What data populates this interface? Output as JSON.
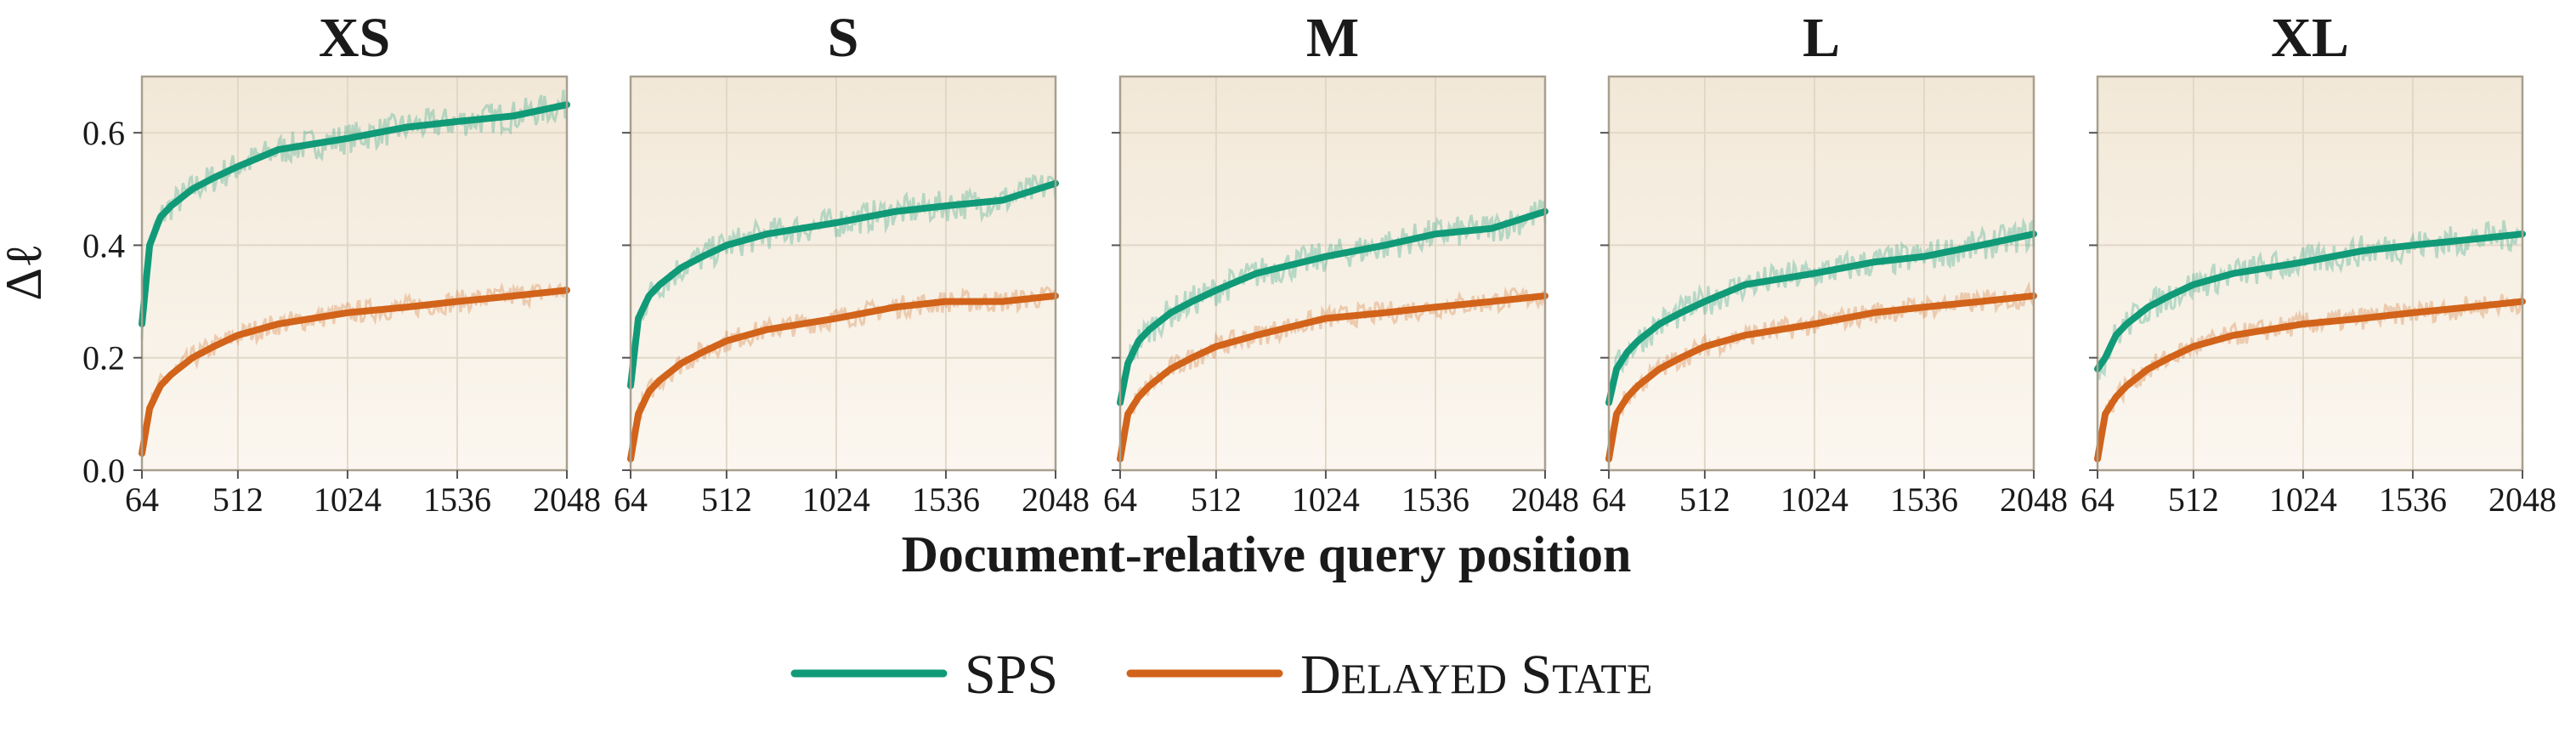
{
  "chart_data": {
    "type": "line",
    "ylabel": "Δℓ",
    "xlabel": "Document-relative query position",
    "x_ticks": [
      "64",
      "512",
      "1024",
      "1536",
      "2048"
    ],
    "y_ticks": [
      "0.0",
      "0.2",
      "0.4",
      "0.6"
    ],
    "xlim": [
      64,
      2048
    ],
    "ylim": [
      0.0,
      0.7
    ],
    "grid": true,
    "legend_position": "bottom-center",
    "x": [
      64,
      100,
      150,
      200,
      300,
      400,
      512,
      700,
      1024,
      1300,
      1536,
      1800,
      2048
    ],
    "colors": {
      "SPS": "#119a78",
      "Delayed State": "#d2631a"
    },
    "panels": [
      {
        "title": "XS",
        "series": [
          {
            "name": "SPS",
            "values": [
              0.26,
              0.4,
              0.45,
              0.47,
              0.5,
              0.52,
              0.54,
              0.57,
              0.59,
              0.61,
              0.62,
              0.63,
              0.65
            ]
          },
          {
            "name": "Delayed State",
            "values": [
              0.03,
              0.11,
              0.15,
              0.17,
              0.2,
              0.22,
              0.24,
              0.26,
              0.28,
              0.29,
              0.3,
              0.31,
              0.32
            ]
          }
        ]
      },
      {
        "title": "S",
        "series": [
          {
            "name": "SPS",
            "values": [
              0.15,
              0.27,
              0.31,
              0.33,
              0.36,
              0.38,
              0.4,
              0.42,
              0.44,
              0.46,
              0.47,
              0.48,
              0.51
            ]
          },
          {
            "name": "Delayed State",
            "values": [
              0.02,
              0.1,
              0.14,
              0.16,
              0.19,
              0.21,
              0.23,
              0.25,
              0.27,
              0.29,
              0.3,
              0.3,
              0.31
            ]
          }
        ]
      },
      {
        "title": "M",
        "series": [
          {
            "name": "SPS",
            "values": [
              0.12,
              0.19,
              0.23,
              0.25,
              0.28,
              0.3,
              0.32,
              0.35,
              0.38,
              0.4,
              0.42,
              0.43,
              0.46
            ]
          },
          {
            "name": "Delayed State",
            "values": [
              0.02,
              0.1,
              0.13,
              0.15,
              0.18,
              0.2,
              0.22,
              0.24,
              0.27,
              0.28,
              0.29,
              0.3,
              0.31
            ]
          }
        ]
      },
      {
        "title": "L",
        "series": [
          {
            "name": "SPS",
            "values": [
              0.12,
              0.18,
              0.21,
              0.23,
              0.26,
              0.28,
              0.3,
              0.33,
              0.35,
              0.37,
              0.38,
              0.4,
              0.42
            ]
          },
          {
            "name": "Delayed State",
            "values": [
              0.02,
              0.1,
              0.13,
              0.15,
              0.18,
              0.2,
              0.22,
              0.24,
              0.26,
              0.28,
              0.29,
              0.3,
              0.31
            ]
          }
        ]
      },
      {
        "title": "XL",
        "series": [
          {
            "name": "SPS",
            "values": [
              0.18,
              0.2,
              0.24,
              0.26,
              0.29,
              0.31,
              0.33,
              0.35,
              0.37,
              0.39,
              0.4,
              0.41,
              0.42
            ]
          },
          {
            "name": "Delayed State",
            "values": [
              0.02,
              0.1,
              0.13,
              0.15,
              0.18,
              0.2,
              0.22,
              0.24,
              0.26,
              0.27,
              0.28,
              0.29,
              0.3
            ]
          }
        ]
      }
    ]
  },
  "legend": {
    "items": [
      {
        "label": "SPS",
        "color": "#119a78"
      },
      {
        "label": "Delayed State",
        "color": "#d2631a"
      }
    ]
  }
}
